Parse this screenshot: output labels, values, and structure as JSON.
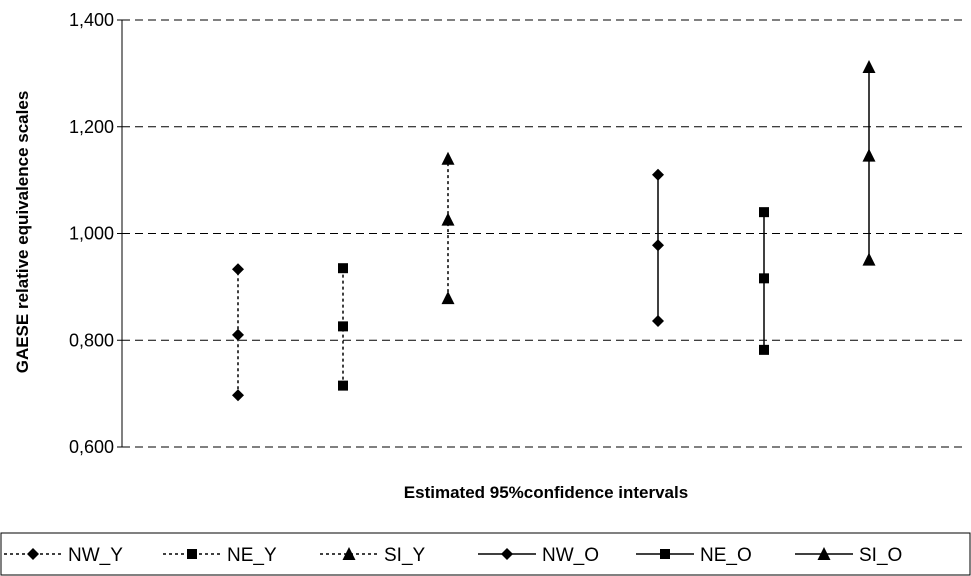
{
  "chart_data": {
    "type": "scatter",
    "title": "",
    "xlabel": "Estimated 95%confidence intervals",
    "ylabel": "GAESE relative equivalence scales",
    "ylim": [
      0.6,
      1.4
    ],
    "yticks": [
      "0,600",
      "0,800",
      "1,000",
      "1,200",
      "1,400"
    ],
    "ytick_values": [
      0.6,
      0.8,
      1.0,
      1.2,
      1.4
    ],
    "grid": "horizontal dashed",
    "legend_position": "bottom",
    "series": [
      {
        "name": "NW_Y",
        "marker": "diamond",
        "line": "dotted",
        "values": [
          0.697,
          0.81,
          0.933
        ]
      },
      {
        "name": "NE_Y",
        "marker": "square",
        "line": "dotted",
        "values": [
          0.715,
          0.826,
          0.935
        ]
      },
      {
        "name": "SI_Y",
        "marker": "triangle",
        "line": "dotted",
        "values": [
          0.879,
          1.026,
          1.14
        ]
      },
      {
        "name": "NW_O",
        "marker": "diamond",
        "line": "solid",
        "values": [
          0.836,
          0.978,
          1.11
        ]
      },
      {
        "name": "NE_O",
        "marker": "square",
        "line": "solid",
        "values": [
          0.782,
          0.916,
          1.04
        ]
      },
      {
        "name": "SI_O",
        "marker": "triangle",
        "line": "solid",
        "values": [
          0.951,
          1.146,
          1.312
        ]
      }
    ]
  }
}
